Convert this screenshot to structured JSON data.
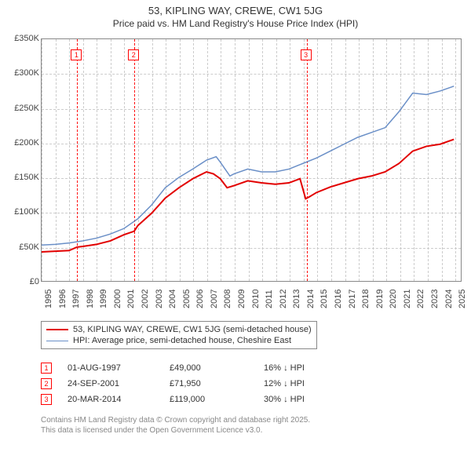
{
  "title": "53, KIPLING WAY, CREWE, CW1 5JG",
  "subtitle": "Price paid vs. HM Land Registry's House Price Index (HPI)",
  "chart": {
    "type": "line",
    "background_color": "#ffffff",
    "grid_color": "#cccccc",
    "axis_color": "#888888",
    "label_color": "#444444",
    "label_fontsize": 11,
    "xlim": [
      1995,
      2025.5
    ],
    "ylim": [
      0,
      350000
    ],
    "ytick_step": 50000,
    "yticks": [
      "£0",
      "£50K",
      "£100K",
      "£150K",
      "£200K",
      "£250K",
      "£300K",
      "£350K"
    ],
    "xticks": [
      1995,
      1996,
      1997,
      1998,
      1999,
      2000,
      2001,
      2002,
      2003,
      2004,
      2005,
      2006,
      2007,
      2008,
      2009,
      2010,
      2011,
      2012,
      2013,
      2014,
      2015,
      2016,
      2017,
      2018,
      2019,
      2020,
      2021,
      2022,
      2023,
      2024,
      2025
    ],
    "series": [
      {
        "name": "price_paid",
        "label": "53, KIPLING WAY, CREWE, CW1 5JG (semi-detached house)",
        "color": "#e20000",
        "line_width": 2,
        "points": [
          [
            1995,
            42000
          ],
          [
            1996,
            43000
          ],
          [
            1997,
            44000
          ],
          [
            1997.58,
            49000
          ],
          [
            1998,
            50000
          ],
          [
            1999,
            53000
          ],
          [
            2000,
            58000
          ],
          [
            2001,
            67000
          ],
          [
            2001.73,
            71950
          ],
          [
            2002,
            80000
          ],
          [
            2003,
            98000
          ],
          [
            2004,
            120000
          ],
          [
            2005,
            135000
          ],
          [
            2006,
            148000
          ],
          [
            2007,
            158000
          ],
          [
            2007.5,
            155000
          ],
          [
            2008,
            148000
          ],
          [
            2008.5,
            135000
          ],
          [
            2009,
            138000
          ],
          [
            2010,
            145000
          ],
          [
            2011,
            142000
          ],
          [
            2012,
            140000
          ],
          [
            2013,
            142000
          ],
          [
            2013.8,
            148000
          ],
          [
            2014.21,
            119000
          ],
          [
            2014.5,
            122000
          ],
          [
            2015,
            128000
          ],
          [
            2016,
            136000
          ],
          [
            2017,
            142000
          ],
          [
            2018,
            148000
          ],
          [
            2019,
            152000
          ],
          [
            2020,
            158000
          ],
          [
            2021,
            170000
          ],
          [
            2022,
            188000
          ],
          [
            2023,
            195000
          ],
          [
            2024,
            198000
          ],
          [
            2025,
            205000
          ]
        ]
      },
      {
        "name": "hpi",
        "label": "HPI: Average price, semi-detached house, Cheshire East",
        "color": "#6a8fc7",
        "line_width": 1.5,
        "points": [
          [
            1995,
            52000
          ],
          [
            1996,
            53000
          ],
          [
            1997,
            55000
          ],
          [
            1998,
            58000
          ],
          [
            1999,
            62000
          ],
          [
            2000,
            68000
          ],
          [
            2001,
            76000
          ],
          [
            2002,
            90000
          ],
          [
            2003,
            110000
          ],
          [
            2004,
            135000
          ],
          [
            2005,
            150000
          ],
          [
            2006,
            162000
          ],
          [
            2007,
            175000
          ],
          [
            2007.7,
            180000
          ],
          [
            2008,
            172000
          ],
          [
            2008.7,
            152000
          ],
          [
            2009,
            155000
          ],
          [
            2010,
            162000
          ],
          [
            2011,
            158000
          ],
          [
            2012,
            158000
          ],
          [
            2013,
            162000
          ],
          [
            2014,
            170000
          ],
          [
            2015,
            178000
          ],
          [
            2016,
            188000
          ],
          [
            2017,
            198000
          ],
          [
            2018,
            208000
          ],
          [
            2019,
            215000
          ],
          [
            2020,
            222000
          ],
          [
            2021,
            245000
          ],
          [
            2022,
            272000
          ],
          [
            2023,
            270000
          ],
          [
            2024,
            275000
          ],
          [
            2025,
            282000
          ]
        ]
      }
    ],
    "markers": [
      {
        "id": "1",
        "x": 1997.58,
        "date": "01-AUG-1997",
        "price": "£49,000",
        "delta": "16% ↓ HPI"
      },
      {
        "id": "2",
        "x": 2001.73,
        "date": "24-SEP-2001",
        "price": "£71,950",
        "delta": "12% ↓ HPI"
      },
      {
        "id": "3",
        "x": 2014.21,
        "date": "20-MAR-2014",
        "price": "£119,000",
        "delta": "30% ↓ HPI"
      }
    ]
  },
  "legend": {
    "rows": [
      "price_paid",
      "hpi"
    ]
  },
  "footnote": {
    "line1": "Contains HM Land Registry data © Crown copyright and database right 2025.",
    "line2": "This data is licensed under the Open Government Licence v3.0."
  }
}
